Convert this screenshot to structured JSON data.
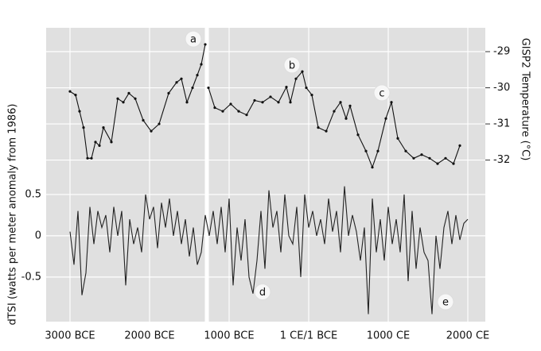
{
  "chart_data": {
    "type": "line",
    "y_label": "dTSI (watts per meter anomaly from 1986)",
    "y2_label": "GISP2 Temperature (°C)",
    "xlim": [
      -3300,
      2220
    ],
    "xticks": [
      {
        "value": -3000,
        "label": "3000 BCE"
      },
      {
        "value": -2000,
        "label": "2000 BCE"
      },
      {
        "value": -1000,
        "label": "1000 BCE"
      },
      {
        "value": 0,
        "label": "1 CE/1 BCE"
      },
      {
        "value": 1000,
        "label": "1000 CE"
      },
      {
        "value": 2000,
        "label": "2000 CE"
      }
    ],
    "ylim": [
      -1.04,
      2.52
    ],
    "yticks": [
      -0.5,
      0,
      0.5
    ],
    "y2lim": [
      -36.47,
      -28.34
    ],
    "y2ticks": [
      -32,
      -31,
      -30,
      -29
    ],
    "grid": true,
    "break_x": -1280,
    "series": [
      {
        "name": "GISP2 Temperature",
        "axis": "y2",
        "color": "#111111",
        "markers": true,
        "x": [
          -3000,
          -2930,
          -2880,
          -2830,
          -2780,
          -2730,
          -2680,
          -2630,
          -2580,
          -2480,
          -2400,
          -2330,
          -2260,
          -2180,
          -2080,
          -1980,
          -1880,
          -1760,
          -1660,
          -1600,
          -1530,
          -1460,
          -1400,
          -1350,
          -1300,
          -1280,
          -1260,
          -1180,
          -1080,
          -980,
          -880,
          -780,
          -680,
          -580,
          -480,
          -380,
          -280,
          -230,
          -160,
          -80,
          -30,
          40,
          120,
          220,
          320,
          400,
          470,
          520,
          620,
          720,
          800,
          870,
          970,
          1040,
          1120,
          1220,
          1320,
          1420,
          1520,
          1620,
          1720,
          1820,
          1900
        ],
        "values": [
          -30.1,
          -30.2,
          -30.65,
          -31.1,
          -31.95,
          -31.95,
          -31.5,
          -31.6,
          -31.1,
          -31.5,
          -30.3,
          -30.4,
          -30.15,
          -30.3,
          -30.9,
          -31.2,
          -31.0,
          -30.15,
          -29.85,
          -29.75,
          -30.4,
          -30.0,
          -29.65,
          -29.35,
          -28.8,
          null,
          -30.0,
          -30.55,
          -30.65,
          -30.45,
          -30.65,
          -30.75,
          -30.35,
          -30.4,
          -30.25,
          -30.4,
          -29.98,
          -30.4,
          -29.75,
          -29.55,
          -30.0,
          -30.2,
          -31.1,
          -31.2,
          -30.65,
          -30.4,
          -30.85,
          -30.5,
          -31.3,
          -31.75,
          -32.2,
          -31.75,
          -30.85,
          -30.4,
          -31.4,
          -31.75,
          -31.95,
          -31.85,
          -31.95,
          -32.1,
          -31.95,
          -32.1,
          -31.6
        ]
      },
      {
        "name": "dTSI",
        "axis": "y",
        "color": "#222222",
        "markers": false,
        "x": [
          -3000,
          -2950,
          -2900,
          -2850,
          -2800,
          -2750,
          -2700,
          -2650,
          -2600,
          -2550,
          -2500,
          -2450,
          -2400,
          -2350,
          -2300,
          -2250,
          -2200,
          -2150,
          -2100,
          -2050,
          -2000,
          -1950,
          -1900,
          -1850,
          -1800,
          -1750,
          -1700,
          -1650,
          -1600,
          -1550,
          -1500,
          -1450,
          -1400,
          -1350,
          -1300,
          -1250,
          -1200,
          -1150,
          -1100,
          -1050,
          -1000,
          -950,
          -900,
          -850,
          -800,
          -750,
          -700,
          -650,
          -600,
          -550,
          -500,
          -450,
          -400,
          -350,
          -300,
          -250,
          -200,
          -150,
          -100,
          -50,
          0,
          50,
          100,
          150,
          200,
          250,
          300,
          350,
          400,
          450,
          500,
          550,
          600,
          650,
          700,
          750,
          800,
          850,
          900,
          950,
          1000,
          1050,
          1100,
          1150,
          1200,
          1250,
          1300,
          1350,
          1400,
          1450,
          1500,
          1550,
          1600,
          1650,
          1700,
          1750,
          1800,
          1850,
          1900,
          1950,
          2000
        ],
        "values": [
          0.05,
          -0.35,
          0.3,
          -0.72,
          -0.45,
          0.35,
          -0.1,
          0.3,
          0.1,
          0.25,
          -0.2,
          0.35,
          0.0,
          0.3,
          -0.6,
          0.2,
          -0.1,
          0.1,
          -0.2,
          0.5,
          0.2,
          0.35,
          -0.15,
          0.4,
          0.1,
          0.45,
          0.0,
          0.3,
          -0.1,
          0.2,
          -0.25,
          0.1,
          -0.35,
          -0.2,
          0.25,
          0.0,
          0.3,
          -0.1,
          0.35,
          -0.2,
          0.45,
          -0.6,
          0.1,
          -0.3,
          0.2,
          -0.5,
          -0.7,
          -0.3,
          0.3,
          -0.4,
          0.55,
          0.1,
          0.3,
          -0.2,
          0.5,
          0.0,
          -0.1,
          0.35,
          -0.5,
          0.5,
          0.1,
          0.3,
          0.0,
          0.2,
          -0.1,
          0.45,
          0.05,
          0.3,
          -0.2,
          0.6,
          0.0,
          0.25,
          0.05,
          -0.3,
          0.1,
          -0.95,
          0.45,
          -0.2,
          0.2,
          -0.3,
          0.35,
          -0.1,
          0.2,
          -0.2,
          0.5,
          -0.55,
          0.3,
          -0.4,
          0.1,
          -0.2,
          -0.3,
          -0.95,
          0.0,
          -0.4,
          0.1,
          0.3,
          -0.1,
          0.25,
          -0.05,
          0.15,
          0.2
        ]
      }
    ],
    "annotations": [
      {
        "text": "a",
        "x": -1450,
        "y": -28.65,
        "axis": "y2"
      },
      {
        "text": "b",
        "x": -210,
        "y": -29.37,
        "axis": "y2"
      },
      {
        "text": "c",
        "x": 920,
        "y": -30.14,
        "axis": "y2"
      },
      {
        "text": "d",
        "x": -580,
        "y": -0.68,
        "axis": "y"
      },
      {
        "text": "e",
        "x": 1720,
        "y": -0.8,
        "axis": "y"
      }
    ]
  }
}
